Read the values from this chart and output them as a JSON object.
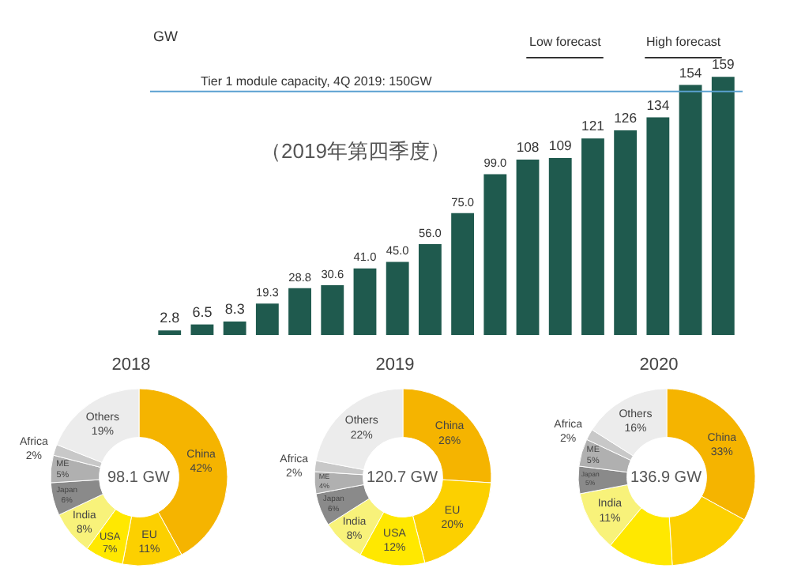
{
  "chart_data": [
    {
      "type": "bar",
      "ylabel": "GW",
      "categories": [
        null,
        null,
        null,
        null,
        null,
        null,
        null,
        null,
        null,
        null,
        null,
        null,
        null,
        null,
        null,
        null,
        null,
        null
      ],
      "values": [
        2.8,
        6.5,
        8.3,
        19.3,
        28.8,
        30.6,
        41.0,
        45.0,
        56.0,
        75.0,
        99.0,
        108,
        109,
        121,
        126,
        134,
        154,
        159
      ],
      "value_labels": [
        "2.8",
        "6.5",
        "8.3",
        "19.3",
        "28.8",
        "30.6",
        "41.0",
        "45.0",
        "56.0",
        "75.0",
        "99.0",
        "108",
        "109",
        "121",
        "126",
        "134",
        "154",
        "159"
      ],
      "color": "#1f5a4e",
      "tick_labels": false,
      "ref_lines": [
        {
          "axis": "y",
          "value": 150,
          "label": "Tier 1 module capacity, 4Q 2019: 150GW",
          "color": "#5aa0d0"
        }
      ],
      "annotations": [
        "（2019年第四季度）",
        "Low forecast",
        "High forecast"
      ]
    },
    {
      "type": "donut",
      "title": "2018",
      "categories": [
        "China",
        "EU",
        "USA",
        "India",
        "Japan",
        "ME",
        "Africa",
        "Others"
      ],
      "values": [
        42,
        11,
        7,
        8,
        6,
        5,
        2,
        19
      ],
      "value_labels": [
        "42%",
        "11%",
        "7%",
        "8%",
        "6%",
        "5%",
        "2%",
        "19%"
      ],
      "colors": [
        "#f5b400",
        "#fcd000",
        "#ffe800",
        "#f8f27a",
        "#8a8a8a",
        "#b0b0b0",
        "#c8c8c8",
        "#ececec"
      ],
      "annotations": [
        "98.1 GW"
      ]
    },
    {
      "type": "donut",
      "title": "2019",
      "categories": [
        "China",
        "EU",
        "USA",
        "India",
        "Japan",
        "ME",
        "Africa",
        "Others"
      ],
      "values": [
        26,
        20,
        12,
        8,
        6,
        4,
        2,
        22
      ],
      "value_labels": [
        "26%",
        "20%",
        "12%",
        "8%",
        "6%",
        "4%",
        "2%",
        "22%"
      ],
      "colors": [
        "#f5b400",
        "#fcd000",
        "#ffe800",
        "#f8f27a",
        "#8a8a8a",
        "#b0b0b0",
        "#c8c8c8",
        "#ececec"
      ],
      "annotations": [
        "120.7 GW"
      ]
    },
    {
      "type": "donut",
      "title": "2020",
      "categories": [
        "China",
        null,
        null,
        "India",
        "Japan",
        "ME",
        "Africa",
        "Others"
      ],
      "values": [
        33,
        16,
        12,
        11,
        5,
        5,
        2,
        16
      ],
      "value_labels": [
        "33%",
        null,
        null,
        "11%",
        "5%",
        "5%",
        "2%",
        "16%"
      ],
      "colors": [
        "#f5b400",
        "#fcd000",
        "#ffe800",
        "#f8f27a",
        "#8a8a8a",
        "#b0b0b0",
        "#c8c8c8",
        "#ececec"
      ],
      "annotations": [
        "136.9 GW"
      ]
    }
  ]
}
